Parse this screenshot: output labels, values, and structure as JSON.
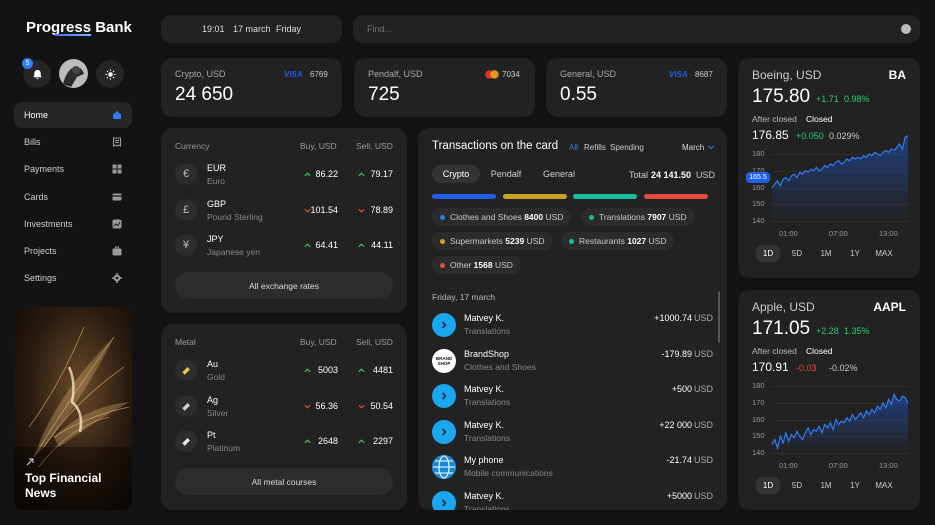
{
  "app": {
    "name": "Progress Bank",
    "notifications": "5"
  },
  "nav": [
    {
      "label": "Home",
      "icon": "home-icon"
    },
    {
      "label": "Bills",
      "icon": "bills-icon"
    },
    {
      "label": "Payments",
      "icon": "payments-icon"
    },
    {
      "label": "Cards",
      "icon": "cards-icon"
    },
    {
      "label": "Investments",
      "icon": "investments-icon"
    },
    {
      "label": "Projects",
      "icon": "projects-icon"
    },
    {
      "label": "Settings",
      "icon": "settings-icon"
    }
  ],
  "news": {
    "title": "Top Financial News"
  },
  "topbar": {
    "time": "19:01",
    "date": "17 march",
    "weekday": "Friday",
    "search_placeholder": "Find..."
  },
  "balances": [
    {
      "label": "Crypto, USD",
      "brand": "VISA",
      "last4": "6769",
      "value": "24 650"
    },
    {
      "label": "Pendalf, USD",
      "brand": "mastercard",
      "last4": "7034",
      "value": "725"
    },
    {
      "label": "General, USD",
      "brand": "VISA",
      "last4": "8687",
      "value": "0.55"
    }
  ],
  "currency": {
    "title": "Currency",
    "buy_header": "Buy, USD",
    "sell_header": "Sell, USD",
    "rows": [
      {
        "symbol": "€",
        "code": "EUR",
        "name": "Euro",
        "buy": "86.22",
        "buy_dir": "up",
        "sell": "79.17",
        "sell_dir": "up"
      },
      {
        "symbol": "£",
        "code": "GBP",
        "name": "Pound Sterling",
        "buy": "101.54",
        "buy_dir": "down",
        "sell": "78.89",
        "sell_dir": "down"
      },
      {
        "symbol": "¥",
        "code": "JPY",
        "name": "Japanese yen",
        "buy": "64.41",
        "buy_dir": "up",
        "sell": "44.11",
        "sell_dir": "up"
      }
    ],
    "button": "All exchange rates"
  },
  "metal": {
    "title": "Metal",
    "buy_header": "Buy, USD",
    "sell_header": "Sell, USD",
    "rows": [
      {
        "code": "Au",
        "name": "Gold",
        "buy": "5003",
        "buy_dir": "up",
        "sell": "4481",
        "sell_dir": "up",
        "color": "#e8c547"
      },
      {
        "code": "Ag",
        "name": "Silver",
        "buy": "56.36",
        "buy_dir": "down",
        "sell": "50.54",
        "sell_dir": "down",
        "color": "#d0d0d0"
      },
      {
        "code": "Pt",
        "name": "Platinum",
        "buy": "2648",
        "buy_dir": "up",
        "sell": "2297",
        "sell_dir": "up",
        "color": "#e6e6e6"
      }
    ],
    "button": "All metal courses"
  },
  "transactions": {
    "title": "Transactions on the card",
    "filters": [
      "All",
      "Refills",
      "Spending"
    ],
    "month": "March",
    "tabs": [
      "Crypto",
      "Pendalf",
      "General"
    ],
    "total_label": "Total",
    "total_value": "24 141.50",
    "total_unit": "USD",
    "bars": [
      "#1f5ee8",
      "#c9a227",
      "#1abc9c",
      "#e74c3c"
    ],
    "categories": [
      {
        "name": "Clothes and Shoes",
        "amount": "8400",
        "unit": "USD",
        "color": "#2f7df6"
      },
      {
        "name": "Translations",
        "amount": "7907",
        "unit": "USD",
        "color": "#1abc9c"
      },
      {
        "name": "Supermarkets",
        "amount": "5239",
        "unit": "USD",
        "color": "#c9a227"
      },
      {
        "name": "Restaurants",
        "amount": "1027",
        "unit": "USD",
        "color": "#1abc9c"
      },
      {
        "name": "Other",
        "amount": "1568",
        "unit": "USD",
        "color": "#e74c3c"
      }
    ],
    "day_header": "Friday, 17 march",
    "items": [
      {
        "name": "Matvey K.",
        "category": "Translations",
        "amount": "+1000.74",
        "unit": "USD",
        "kind": "arrow"
      },
      {
        "name": "BrandShop",
        "category": "Clothes and Shoes",
        "amount": "-179.89",
        "unit": "USD",
        "kind": "brand",
        "logo": "BRANDSHOP"
      },
      {
        "name": "Matvey K.",
        "category": "Translations",
        "amount": "+500",
        "unit": "USD",
        "kind": "arrow"
      },
      {
        "name": "Matvey K.",
        "category": "Translations",
        "amount": "+22 000",
        "unit": "USD",
        "kind": "arrow"
      },
      {
        "name": "My phone",
        "category": "Mobile communications",
        "amount": "-21.74",
        "unit": "USD",
        "kind": "globe"
      },
      {
        "name": "Matvey K.",
        "category": "Translations",
        "amount": "+5000",
        "unit": "USD",
        "kind": "arrow"
      }
    ]
  },
  "stocks": [
    {
      "name": "Boeing, USD",
      "ticker": "BA",
      "price": "175.80",
      "change": "+1.71",
      "change_pct": "0.98%",
      "after_label": "After closed",
      "after_state": "Closed",
      "after_price": "176.85",
      "after_change": "+0.050",
      "after_pct": "0.029%",
      "after_dir": "up",
      "current_marker": "165.5",
      "yticks": [
        "180",
        "170",
        "160",
        "150",
        "140"
      ],
      "ylim": [
        140,
        180
      ],
      "xticks": [
        "01:00",
        "07:00",
        "13:00"
      ],
      "ranges": [
        "1D",
        "5D",
        "1M",
        "1Y",
        "MAX"
      ],
      "series": [
        160,
        162,
        164,
        161,
        165,
        166,
        164,
        167,
        168,
        166,
        169,
        168,
        170,
        169,
        171,
        170,
        172,
        170,
        171,
        173,
        172,
        174,
        173,
        175,
        176,
        174,
        175,
        177,
        176,
        178,
        177,
        178,
        177,
        179,
        178,
        180,
        179,
        181,
        180,
        179,
        181,
        182,
        181,
        183,
        182,
        184,
        186,
        183,
        190,
        191
      ]
    },
    {
      "name": "Apple, USD",
      "ticker": "AAPL",
      "price": "171.05",
      "change": "+2.28",
      "change_pct": "1.35%",
      "after_label": "After closed",
      "after_state": "Closed",
      "after_price": "170.91",
      "after_change": "-0.03",
      "after_pct": "-0.02%",
      "after_dir": "down",
      "yticks": [
        "180",
        "170",
        "160",
        "150",
        "140"
      ],
      "ylim": [
        140,
        180
      ],
      "xticks": [
        "01:00",
        "07:00",
        "13:00"
      ],
      "ranges": [
        "1D",
        "5D",
        "1M",
        "1Y",
        "MAX"
      ],
      "series": [
        145,
        148,
        143,
        150,
        146,
        152,
        147,
        151,
        149,
        153,
        150,
        148,
        152,
        155,
        151,
        154,
        153,
        156,
        152,
        157,
        155,
        158,
        154,
        160,
        157,
        159,
        158,
        161,
        159,
        163,
        160,
        162,
        164,
        161,
        165,
        163,
        166,
        164,
        168,
        166,
        170,
        167,
        172,
        169,
        175,
        172,
        171,
        174,
        173,
        170
      ]
    }
  ]
}
